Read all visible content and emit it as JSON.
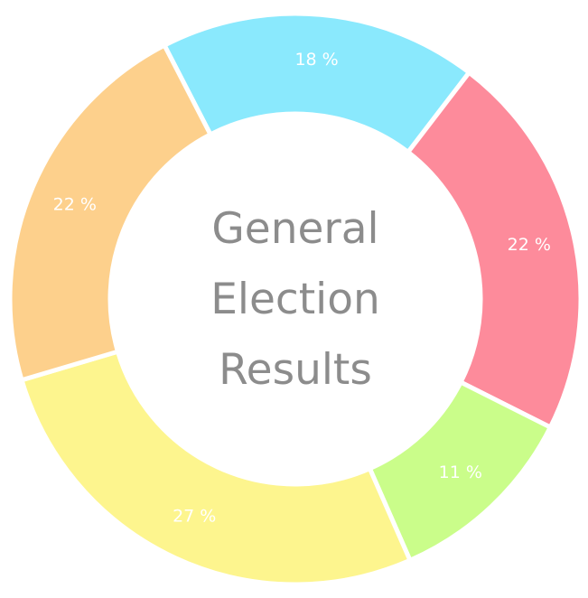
{
  "chart_data": {
    "type": "pie",
    "variant": "donut",
    "title_lines": [
      "General",
      "Election",
      "Results"
    ],
    "values": [
      18,
      22,
      11,
      27,
      22
    ],
    "labels": [
      "18 %",
      "22 %",
      "11 %",
      "27 %",
      "22 %"
    ],
    "colors": [
      "#8ae9fd",
      "#fd8b9b",
      "#cafd8a",
      "#fdf58e",
      "#fdd08c"
    ],
    "legend": "none"
  }
}
